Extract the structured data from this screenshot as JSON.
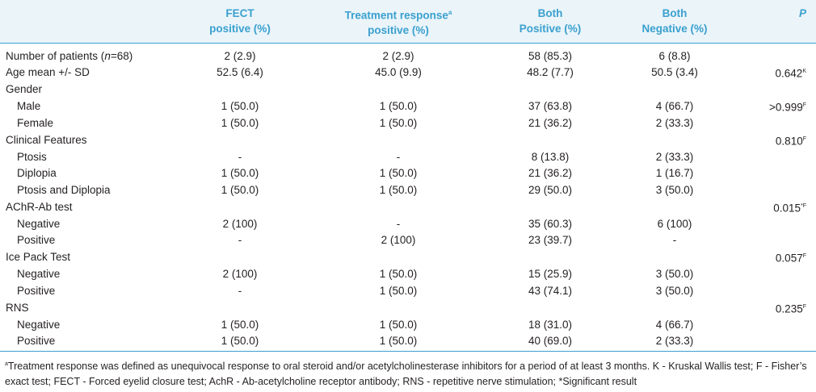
{
  "table": {
    "headers": [
      {
        "key": "label",
        "lines": [
          ""
        ]
      },
      {
        "key": "fect",
        "lines": [
          "FECT",
          "positive (%)"
        ]
      },
      {
        "key": "treat",
        "lines": [
          "Treatment response",
          "positive (%)"
        ],
        "sup": "a"
      },
      {
        "key": "both_pos",
        "lines": [
          "Both",
          "Positive (%)"
        ]
      },
      {
        "key": "both_neg",
        "lines": [
          "Both",
          "Negative (%)"
        ]
      },
      {
        "key": "p",
        "lines": [
          "P"
        ]
      }
    ],
    "rows": [
      {
        "type": "row",
        "label_parts": [
          "Number of patients (",
          "n",
          "=68)"
        ],
        "cells": [
          "2 (2.9)",
          "2 (2.9)",
          "58 (85.3)",
          "6 (8.8)"
        ],
        "p": "",
        "p_sup": "",
        "space": true
      },
      {
        "type": "row",
        "label": "Age mean +/- SD",
        "cells": [
          "52.5 (6.4)",
          "45.0 (9.9)",
          "48.2 (7.7)",
          "50.5 (3.4)"
        ],
        "p": "0.642",
        "p_sup": "K",
        "space": false
      },
      {
        "type": "group",
        "label": "Gender",
        "p": "",
        "p_sup": ""
      },
      {
        "type": "sub",
        "label": "Male",
        "cells": [
          "1 (50.0)",
          "1 (50.0)",
          "37 (63.8)",
          "4 (66.7)"
        ],
        "p": ">0.999",
        "p_sup": "F"
      },
      {
        "type": "sub",
        "label": "Female",
        "cells": [
          "1 (50.0)",
          "1 (50.0)",
          "21 (36.2)",
          "2 (33.3)"
        ],
        "p": "",
        "p_sup": ""
      },
      {
        "type": "group",
        "label": "Clinical Features",
        "p": "0.810",
        "p_sup": "F"
      },
      {
        "type": "sub",
        "label": "Ptosis",
        "cells": [
          "-",
          "-",
          "8 (13.8)",
          "2 (33.3)"
        ],
        "p": "",
        "p_sup": ""
      },
      {
        "type": "sub",
        "label": "Diplopia",
        "cells": [
          "1 (50.0)",
          "1 (50.0)",
          "21 (36.2)",
          "1 (16.7)"
        ],
        "p": "",
        "p_sup": ""
      },
      {
        "type": "sub",
        "label": "Ptosis and Diplopia",
        "cells": [
          "1 (50.0)",
          "1 (50.0)",
          "29 (50.0)",
          "3 (50.0)"
        ],
        "p": "",
        "p_sup": ""
      },
      {
        "type": "group",
        "label": "AChR-Ab test",
        "p": "0.015",
        "p_sup": "*F"
      },
      {
        "type": "sub",
        "label": "Negative",
        "cells": [
          "2 (100)",
          "-",
          "35 (60.3)",
          "6 (100)"
        ],
        "p": "",
        "p_sup": ""
      },
      {
        "type": "sub",
        "label": "Positive",
        "cells": [
          "-",
          "2 (100)",
          "23 (39.7)",
          "-"
        ],
        "p": "",
        "p_sup": ""
      },
      {
        "type": "group",
        "label": "Ice Pack Test",
        "p": "0.057",
        "p_sup": "F"
      },
      {
        "type": "sub",
        "label": "Negative",
        "cells": [
          "2 (100)",
          "1 (50.0)",
          "15 (25.9)",
          "3 (50.0)"
        ],
        "p": "",
        "p_sup": ""
      },
      {
        "type": "sub",
        "label": "Positive",
        "cells": [
          "-",
          "1 (50.0)",
          "43 (74.1)",
          "3 (50.0)"
        ],
        "p": "",
        "p_sup": ""
      },
      {
        "type": "group",
        "label": "RNS",
        "p": "0.235",
        "p_sup": "F"
      },
      {
        "type": "sub",
        "label": "Negative",
        "cells": [
          "1 (50.0)",
          "1 (50.0)",
          "18 (31.0)",
          "4 (66.7)"
        ],
        "p": "",
        "p_sup": ""
      },
      {
        "type": "sub",
        "label": "Positive",
        "cells": [
          "1 (50.0)",
          "1 (50.0)",
          "40 (69.0)",
          "2 (33.3)"
        ],
        "p": "",
        "p_sup": ""
      }
    ]
  },
  "footnote": {
    "sup": "a",
    "text": "Treatment response was defined as unequivocal response to oral steroid and/or acetylcholinesterase inhibitors for a period of at least 3 months. K - Kruskal Wallis test; F - Fisher’s exact test; FECT - Forced eyelid closure test; AchR - Ab-acetylcholine receptor antibody; RNS - repetitive nerve stimulation; *Significant result"
  },
  "colors": {
    "accent": "#3aa0cf",
    "header_bg": "#eaf4f9",
    "text": "#231f20"
  }
}
